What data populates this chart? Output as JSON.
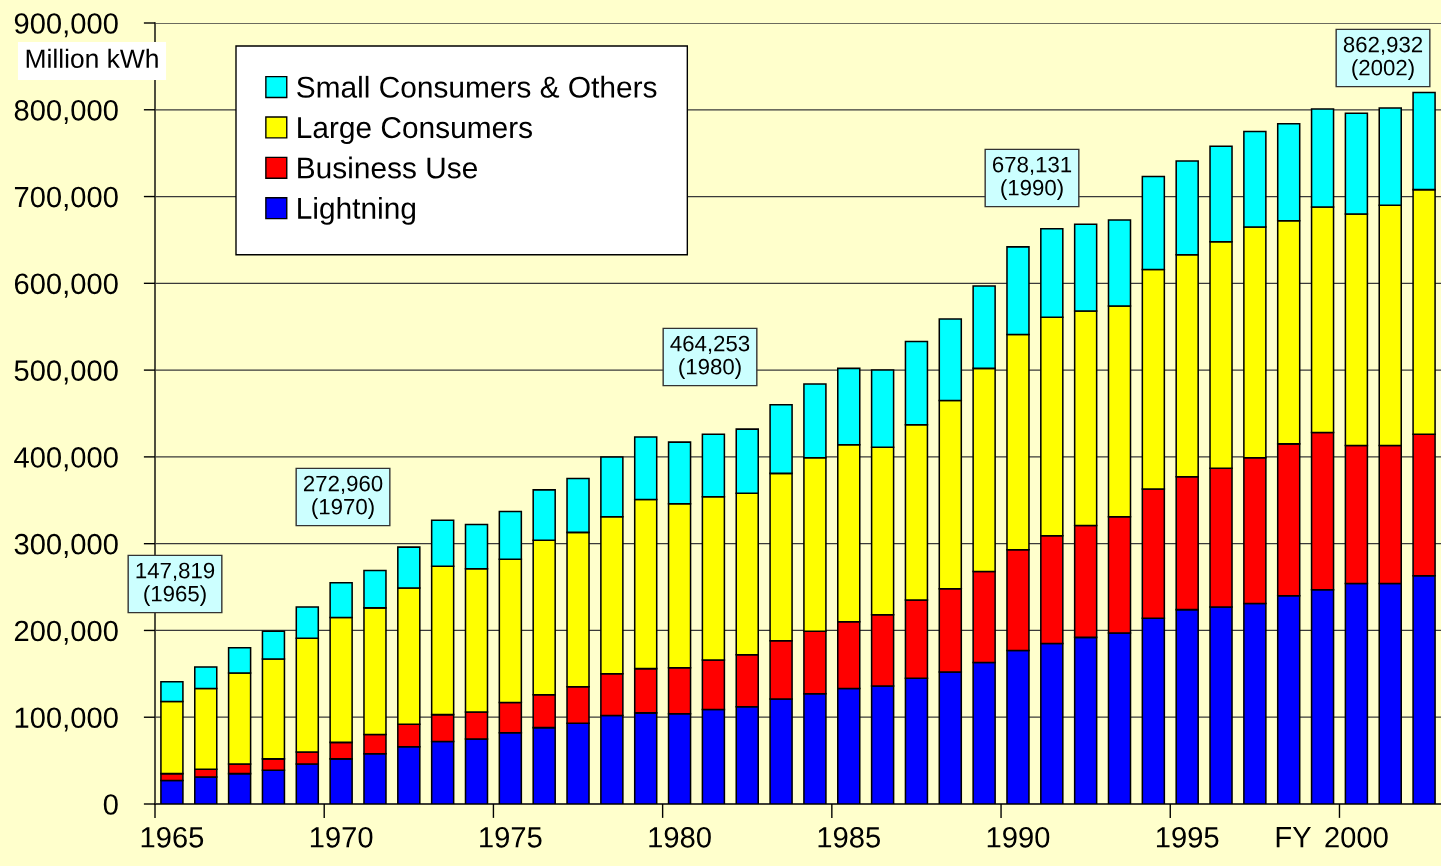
{
  "chart_data": {
    "type": "bar",
    "stacked": true,
    "ylabel": "Million kWh",
    "xlabel": "FY",
    "categories": [
      "1965",
      null,
      null,
      null,
      null,
      "1970",
      null,
      null,
      null,
      null,
      "1975",
      null,
      null,
      null,
      null,
      "1980",
      null,
      null,
      null,
      null,
      "1985",
      null,
      null,
      null,
      null,
      "1990",
      null,
      null,
      null,
      null,
      "1995",
      null,
      null,
      null,
      null,
      "2000",
      null,
      null
    ],
    "ylim": [
      0,
      900000
    ],
    "yticks": [
      0,
      {
        "value": 100000,
        "label": "100,000"
      },
      {
        "value": 200000,
        "label": "200,000"
      },
      {
        "value": 300000,
        "label": "300,000"
      },
      {
        "value": 400000,
        "label": "400,000"
      },
      {
        "value": 500000,
        "label": "500,000"
      },
      {
        "value": 600000,
        "label": "600,000"
      },
      {
        "value": 700000,
        "label": "700,000"
      },
      {
        "value": 800000,
        "label": "800,000"
      },
      {
        "value": 900000,
        "label": "900,000"
      }
    ],
    "grid": "y",
    "legend": "top left",
    "series": [
      {
        "name": "Lightning",
        "color": "#0000ff",
        "values": [
          27000,
          31000,
          35000,
          39000,
          46000,
          52000,
          58000,
          66000,
          72000,
          75000,
          82000,
          88000,
          93000,
          102000,
          105000,
          104000,
          109000,
          112000,
          121000,
          127000,
          133000,
          136000,
          145000,
          152000,
          163000,
          177000,
          185000,
          192000,
          197000,
          214000,
          224000,
          227000,
          231000,
          240000,
          247000,
          254000,
          254000,
          263000
        ]
      },
      {
        "name": "Business Use",
        "color": "#ff0000",
        "values": [
          8000,
          9000,
          11000,
          13000,
          14000,
          19000,
          22000,
          26000,
          31000,
          31000,
          35000,
          38000,
          42000,
          48000,
          51000,
          53000,
          57000,
          60000,
          67000,
          72000,
          77000,
          82000,
          90000,
          96000,
          105000,
          116000,
          124000,
          129000,
          134000,
          149000,
          153000,
          160000,
          168000,
          175000,
          181000,
          159000,
          159000,
          163000
        ]
      },
      {
        "name": "Large Consumers",
        "color": "#ffff00",
        "values": [
          83000,
          93000,
          105000,
          115000,
          131000,
          144000,
          146000,
          157000,
          171000,
          165000,
          165000,
          178000,
          178000,
          181000,
          195000,
          189000,
          188000,
          186000,
          193000,
          200000,
          204000,
          193000,
          202000,
          217000,
          234000,
          248000,
          252000,
          247000,
          243000,
          253000,
          256000,
          261000,
          266000,
          257000,
          260000,
          267000,
          277000,
          282000
        ]
      },
      {
        "name": "Small Consumers & Others",
        "color": "#00ffff",
        "values": [
          23000,
          25000,
          29000,
          32000,
          36000,
          40000,
          43000,
          47000,
          53000,
          51000,
          55000,
          58000,
          62000,
          69000,
          72000,
          71000,
          72000,
          74000,
          79000,
          85000,
          88000,
          89000,
          96000,
          94000,
          95000,
          101000,
          102000,
          100000,
          99000,
          107000,
          108000,
          110000,
          110000,
          112000,
          113000,
          116000,
          112000,
          112000
        ]
      }
    ],
    "annotations": [
      "147,819\n(1965)",
      "272,960\n(1970)",
      "464,253\n(1980)",
      "678,131\n(1990)",
      "862,932\n(2002)"
    ]
  }
}
